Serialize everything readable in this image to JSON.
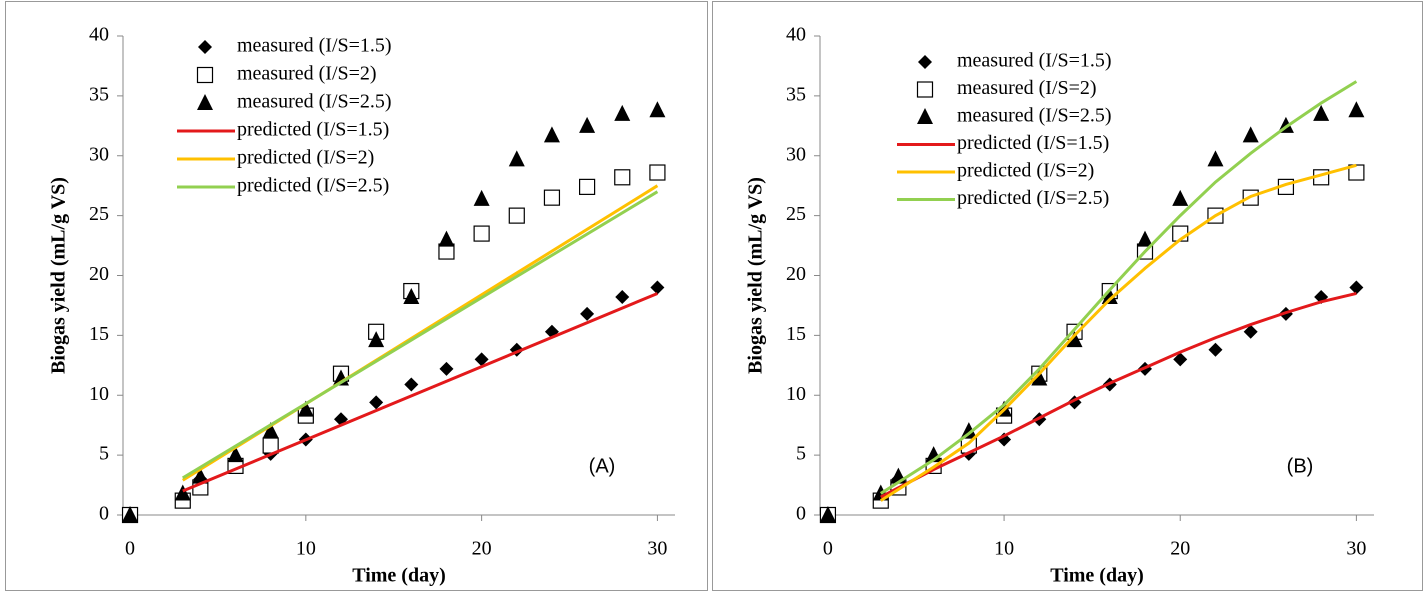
{
  "chart_data": [
    {
      "type": "scatter",
      "label": "(A)",
      "x_label": "Time (day)",
      "y_label": "Biogas yield (mL/g VS)",
      "xlim": [
        -0.4,
        31
      ],
      "ylim": [
        0,
        40
      ],
      "xticks": [
        0,
        10,
        20,
        30
      ],
      "yticks": [
        0,
        5,
        10,
        15,
        20,
        25,
        30,
        35,
        40
      ],
      "legend": "upper left",
      "x": [
        0,
        3,
        4,
        6,
        8,
        10,
        12,
        14,
        16,
        18,
        20,
        22,
        24,
        26,
        28,
        30
      ],
      "series": [
        {
          "name": "measured (I/S=1.5)",
          "marker": "diamond",
          "color": "#000000",
          "values": [
            0,
            1.5,
            3,
            4,
            5.1,
            6.3,
            8,
            9.4,
            10.9,
            12.2,
            13,
            13.8,
            15.3,
            16.8,
            18.2,
            19
          ]
        },
        {
          "name": "measured (I/S=2)",
          "marker": "square",
          "color": "#000000",
          "values": [
            0,
            1.2,
            2.3,
            4.1,
            5.8,
            8.3,
            11.8,
            15.3,
            18.7,
            22,
            23.5,
            25,
            26.5,
            27.4,
            28.2,
            28.6
          ]
        },
        {
          "name": "measured (I/S=2.5)",
          "marker": "triangle",
          "color": "#000000",
          "values": [
            0,
            1.8,
            3.2,
            5,
            7,
            8.8,
            11.4,
            14.6,
            18.2,
            23,
            26.4,
            29.7,
            31.7,
            32.5,
            33.5,
            33.8
          ]
        },
        {
          "name": "predicted (I/S=1.5)",
          "color": "#e3191b",
          "x": [
            3,
            30
          ],
          "values": [
            2,
            18.5
          ]
        },
        {
          "name": "predicted (I/S=2)",
          "color": "#ffc000",
          "x": [
            3,
            30
          ],
          "values": [
            2.9,
            27.5
          ]
        },
        {
          "name": "predicted (I/S=2.5)",
          "color": "#92d050",
          "x": [
            3,
            30
          ],
          "values": [
            3.1,
            27
          ]
        }
      ]
    },
    {
      "type": "scatter",
      "label": "(B)",
      "x_label": "Time (day)",
      "y_label": "Biogas yield (mL/g VS)",
      "xlim": [
        -0.45,
        31
      ],
      "ylim": [
        0,
        40
      ],
      "xticks": [
        0,
        10,
        20,
        30
      ],
      "yticks": [
        0,
        5,
        10,
        15,
        20,
        25,
        30,
        35,
        40
      ],
      "legend": "upper left",
      "x": [
        0,
        3,
        4,
        6,
        8,
        10,
        12,
        14,
        16,
        18,
        20,
        22,
        24,
        26,
        28,
        30
      ],
      "series": [
        {
          "name": "measured (I/S=1.5)",
          "marker": "diamond",
          "color": "#000000",
          "values": [
            0,
            1.5,
            3,
            4,
            5.1,
            6.3,
            8,
            9.4,
            10.9,
            12.2,
            13,
            13.8,
            15.3,
            16.8,
            18.2,
            19
          ]
        },
        {
          "name": "measured (I/S=2)",
          "marker": "square",
          "color": "#000000",
          "values": [
            0,
            1.2,
            2.3,
            4.1,
            5.8,
            8.3,
            11.8,
            15.3,
            18.7,
            22,
            23.5,
            25,
            26.5,
            27.4,
            28.2,
            28.6
          ]
        },
        {
          "name": "measured (I/S=2.5)",
          "marker": "triangle",
          "color": "#000000",
          "values": [
            0,
            1.8,
            3.2,
            5,
            7,
            8.8,
            11.4,
            14.6,
            18.2,
            23,
            26.4,
            29.7,
            31.7,
            32.5,
            33.5,
            33.8
          ]
        },
        {
          "name": "predicted (I/S=1.5)",
          "color": "#e3191b",
          "x": [
            3,
            6,
            8,
            10,
            12,
            14,
            16,
            18,
            20,
            22,
            24,
            26,
            28,
            30
          ],
          "values": [
            1.5,
            3.8,
            5.2,
            6.6,
            8.1,
            9.6,
            11,
            12.3,
            13.6,
            14.8,
            15.9,
            16.9,
            17.8,
            18.5
          ]
        },
        {
          "name": "predicted (I/S=2)",
          "color": "#ffc000",
          "x": [
            3,
            6,
            8,
            10,
            12,
            14,
            16,
            18,
            20,
            22,
            24,
            26,
            28,
            30
          ],
          "values": [
            1.2,
            4,
            6,
            8.8,
            11.8,
            15,
            18,
            20.6,
            23,
            25,
            26.6,
            27.6,
            28.4,
            29.2
          ]
        },
        {
          "name": "predicted (I/S=2.5)",
          "color": "#92d050",
          "x": [
            3,
            6,
            8,
            10,
            12,
            14,
            16,
            18,
            20,
            22,
            24,
            26,
            28,
            30
          ],
          "values": [
            1.8,
            4.6,
            6.8,
            9.2,
            12.2,
            15.5,
            18.8,
            22,
            25,
            27.8,
            30.2,
            32.4,
            34.4,
            36.2
          ]
        }
      ]
    }
  ]
}
